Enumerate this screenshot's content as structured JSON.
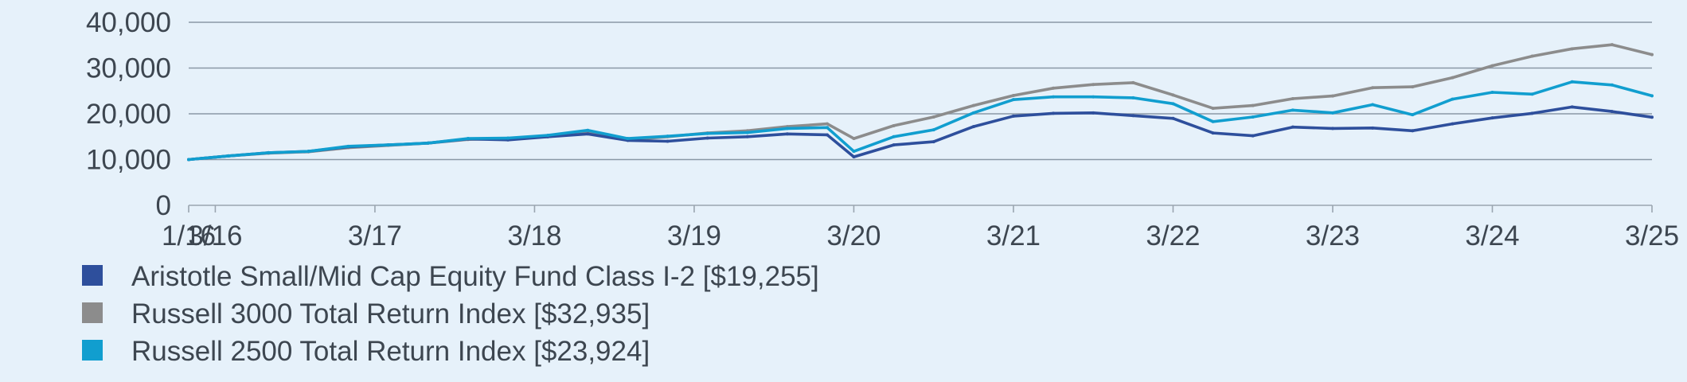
{
  "colors": {
    "background": "#e6f1fa",
    "grid": "#8a98a6",
    "axis": "#9aa5b0",
    "text": "#3d4650"
  },
  "chart_data": {
    "type": "line",
    "title": "",
    "xlabel": "",
    "ylabel": "",
    "ylim": [
      0,
      40000
    ],
    "y_ticks": [
      0,
      10000,
      20000,
      30000,
      40000
    ],
    "y_tick_labels": [
      "0",
      "10,000",
      "20,000",
      "30,000",
      "40,000"
    ],
    "x_range": [
      "2016-01",
      "2025-03"
    ],
    "x_ticks": [
      "2016-01",
      "2016-03",
      "2017-03",
      "2018-03",
      "2019-03",
      "2020-03",
      "2021-03",
      "2022-03",
      "2023-03",
      "2024-03",
      "2025-03"
    ],
    "x_tick_labels": [
      "1/16",
      "3/16",
      "3/17",
      "3/18",
      "3/19",
      "3/20",
      "3/21",
      "3/22",
      "3/23",
      "3/24",
      "3/25"
    ],
    "grid": "horizontal",
    "legend_position": "bottom-left",
    "x": [
      "2016-01",
      "2016-04",
      "2016-07",
      "2016-10",
      "2017-01",
      "2017-04",
      "2017-07",
      "2017-10",
      "2018-01",
      "2018-04",
      "2018-07",
      "2018-10",
      "2019-01",
      "2019-04",
      "2019-07",
      "2019-10",
      "2020-01",
      "2020-03",
      "2020-06",
      "2020-09",
      "2020-12",
      "2021-03",
      "2021-06",
      "2021-09",
      "2021-12",
      "2022-03",
      "2022-06",
      "2022-09",
      "2022-12",
      "2023-03",
      "2023-06",
      "2023-09",
      "2023-12",
      "2024-03",
      "2024-06",
      "2024-09",
      "2024-12",
      "2025-03"
    ],
    "series": [
      {
        "name": "Aristotle Small/Mid Cap Equity Fund Class I-2 [$19,255]",
        "color": "#2e4f9c",
        "values": [
          10000,
          10800,
          11500,
          11800,
          12800,
          13200,
          13600,
          14500,
          14300,
          15000,
          15600,
          14200,
          14000,
          14700,
          15000,
          15600,
          15400,
          10600,
          13200,
          13900,
          17200,
          19500,
          20100,
          20200,
          19600,
          19000,
          15800,
          15200,
          17100,
          16800,
          16900,
          16300,
          17800,
          19100,
          20100,
          21500,
          20500,
          19255
        ]
      },
      {
        "name": "Russell 3000 Total Return Index [$32,935]",
        "color": "#8c8c8c",
        "values": [
          10000,
          10800,
          11400,
          11700,
          12600,
          13100,
          13600,
          14400,
          14600,
          15000,
          16000,
          14300,
          15000,
          15800,
          16300,
          17200,
          17800,
          14600,
          17400,
          19300,
          21800,
          24000,
          25600,
          26400,
          26800,
          24100,
          21200,
          21800,
          23300,
          23900,
          25700,
          25900,
          27900,
          30500,
          32600,
          34200,
          35100,
          32935
        ]
      },
      {
        "name": "Russell 2500 Total Return Index [$23,924]",
        "color": "#119ecf",
        "values": [
          10000,
          10800,
          11500,
          11800,
          12900,
          13200,
          13600,
          14600,
          14700,
          15300,
          16400,
          14600,
          15100,
          15700,
          15900,
          16800,
          17000,
          11800,
          15000,
          16500,
          20200,
          23100,
          23700,
          23700,
          23500,
          22200,
          18300,
          19300,
          20800,
          20200,
          22000,
          19800,
          23200,
          24700,
          24300,
          27000,
          26300,
          23924
        ]
      }
    ]
  }
}
